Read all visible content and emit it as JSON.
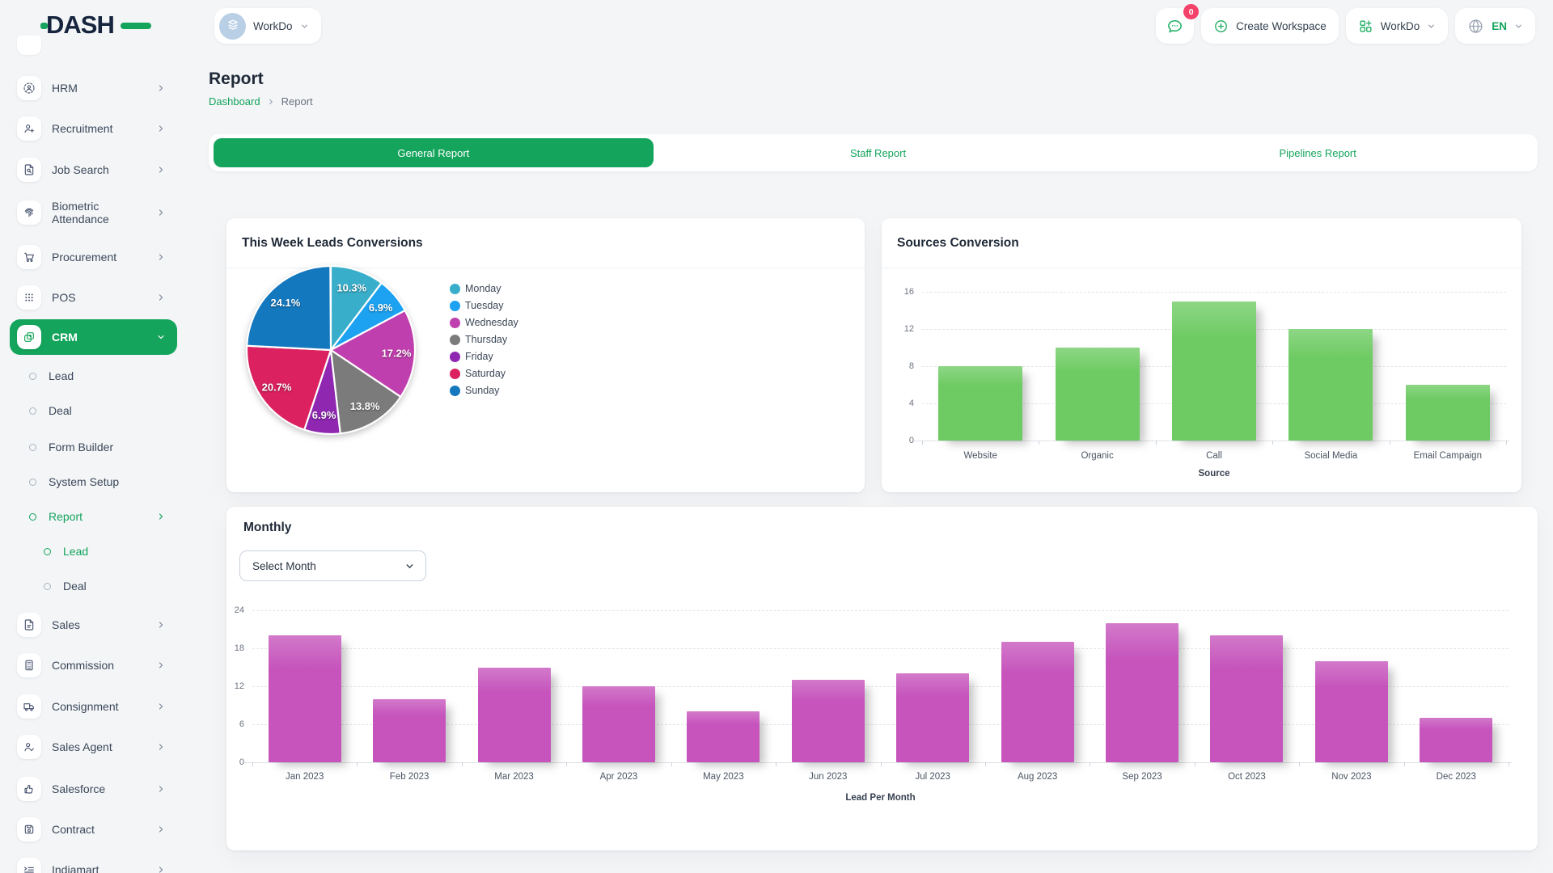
{
  "header": {
    "logo": "DASH",
    "workspace": {
      "name": "WorkDo",
      "icon": "building-icon"
    },
    "messages": {
      "badge": "0",
      "icon": "chat-icon"
    },
    "create_workspace": {
      "label": "Create Workspace",
      "icon": "plus-circle-icon"
    },
    "company": {
      "name": "WorkDo",
      "icon": "grid-plus-icon"
    },
    "language": {
      "code": "EN",
      "icon": "globe-icon"
    }
  },
  "sidebar": {
    "items": [
      {
        "label": "HRM",
        "icon": "hrm-icon",
        "level": 0,
        "chevron": "right",
        "active": false
      },
      {
        "label": "Recruitment",
        "icon": "recruitment-icon",
        "level": 0,
        "chevron": "right",
        "active": false
      },
      {
        "label": "Job Search",
        "icon": "job-search-icon",
        "level": 0,
        "chevron": "right",
        "active": false
      },
      {
        "label": "Biometric Attendance",
        "icon": "biometric-icon",
        "level": 0,
        "chevron": "right",
        "active": false
      },
      {
        "label": "Procurement",
        "icon": "procurement-icon",
        "level": 0,
        "chevron": "right",
        "active": false
      },
      {
        "label": "POS",
        "icon": "pos-icon",
        "level": 0,
        "chevron": "right",
        "active": false
      },
      {
        "label": "CRM",
        "icon": "crm-icon",
        "level": 0,
        "chevron": "down",
        "active": true
      },
      {
        "label": "Lead",
        "level": 1,
        "active": false
      },
      {
        "label": "Deal",
        "level": 1,
        "active": false
      },
      {
        "label": "Form Builder",
        "level": 1,
        "active": false
      },
      {
        "label": "System Setup",
        "level": 1,
        "active": false
      },
      {
        "label": "Report",
        "level": 1,
        "chevron": "right",
        "active": true
      },
      {
        "label": "Lead",
        "level": 2,
        "active": true
      },
      {
        "label": "Deal",
        "level": 2,
        "active": false
      },
      {
        "label": "Sales",
        "icon": "sales-icon",
        "level": 0,
        "chevron": "right",
        "active": false
      },
      {
        "label": "Commission",
        "icon": "commission-icon",
        "level": 0,
        "chevron": "right",
        "active": false
      },
      {
        "label": "Consignment",
        "icon": "consignment-icon",
        "level": 0,
        "chevron": "right",
        "active": false
      },
      {
        "label": "Sales Agent",
        "icon": "sales-agent-icon",
        "level": 0,
        "chevron": "right",
        "active": false
      },
      {
        "label": "Salesforce",
        "icon": "salesforce-icon",
        "level": 0,
        "chevron": "right",
        "active": false
      },
      {
        "label": "Contract",
        "icon": "contract-icon",
        "level": 0,
        "chevron": "right",
        "active": false
      },
      {
        "label": "Indiamart",
        "icon": "indiamart-icon",
        "level": 0,
        "chevron": "right",
        "active": false
      }
    ]
  },
  "page": {
    "title": "Report",
    "breadcrumb": {
      "home": "Dashboard",
      "current": "Report"
    }
  },
  "tabs": [
    {
      "label": "General Report",
      "active": true
    },
    {
      "label": "Staff Report",
      "active": false
    },
    {
      "label": "Pipelines Report",
      "active": false
    }
  ],
  "monthly": {
    "select_placeholder": "Select Month"
  },
  "colors": {
    "primary_green": "#14a45c",
    "bar_green": "#6ecb63",
    "bar_magenta": "#c654bc",
    "badge_red": "#f4436b"
  },
  "chart_data": [
    {
      "type": "pie",
      "title": "This Week Leads Conversions",
      "labels": [
        "Monday",
        "Tuesday",
        "Wednesday",
        "Thursday",
        "Friday",
        "Saturday",
        "Sunday"
      ],
      "values_percent": [
        10.3,
        6.9,
        17.2,
        13.8,
        6.9,
        20.7,
        24.1
      ],
      "colors": [
        "#39aecb",
        "#1ca2f1",
        "#c03fae",
        "#7b7b7b",
        "#8f27b1",
        "#db2160",
        "#1478bf"
      ],
      "legend_position": "right"
    },
    {
      "type": "bar",
      "title": "Sources Conversion",
      "categories": [
        "Website",
        "Organic",
        "Call",
        "Social Media",
        "Email Campaign"
      ],
      "values": [
        8,
        10,
        15,
        12,
        6
      ],
      "xlabel": "Source",
      "ylabel": "",
      "ylim": [
        0,
        16
      ],
      "yticks": [
        0,
        4,
        8,
        12,
        16
      ],
      "bar_color": "#6ecb63",
      "grid": true
    },
    {
      "type": "bar",
      "title": "Monthly",
      "categories": [
        "Jan 2023",
        "Feb 2023",
        "Mar 2023",
        "Apr 2023",
        "May 2023",
        "Jun 2023",
        "Jul 2023",
        "Aug 2023",
        "Sep 2023",
        "Oct 2023",
        "Nov 2023",
        "Dec 2023"
      ],
      "values": [
        20,
        10,
        15,
        12,
        8,
        13,
        14,
        19,
        22,
        20,
        16,
        7
      ],
      "xlabel": "Lead Per Month",
      "ylabel": "",
      "ylim": [
        0,
        24
      ],
      "yticks": [
        0,
        6,
        12,
        18,
        24
      ],
      "bar_color": "#c654bc",
      "grid": true
    }
  ]
}
